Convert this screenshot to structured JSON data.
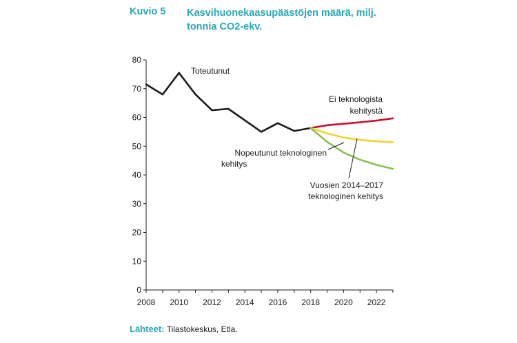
{
  "figure": {
    "label": "Kuvio 5",
    "title": "Kasvihuonekaasupäästöjen määrä, milj. tonnia CO2-ekv."
  },
  "source": {
    "label": "Lähteet:",
    "text": "Tilastokeskus, Etla."
  },
  "chart_data": {
    "type": "line",
    "xlabel": "",
    "ylabel": "",
    "xlim": [
      2008,
      2023
    ],
    "ylim": [
      0,
      80
    ],
    "x_ticks": [
      2008,
      2010,
      2012,
      2014,
      2016,
      2018,
      2020,
      2022
    ],
    "y_ticks": [
      0,
      10,
      20,
      30,
      40,
      50,
      60,
      70,
      80
    ],
    "grid": false,
    "legend": "none",
    "series": [
      {
        "name": "Toteutunut",
        "color": "#1a1a1a",
        "x": [
          2008,
          2009,
          2010,
          2011,
          2012,
          2013,
          2014,
          2015,
          2016,
          2017,
          2018
        ],
        "y": [
          71.5,
          68,
          75.5,
          68,
          62.5,
          63,
          59,
          55,
          58,
          55.3,
          56.3
        ]
      },
      {
        "name": "Ei teknologista kehitystä",
        "color": "#c8102e",
        "x": [
          2018,
          2019,
          2020,
          2021,
          2022,
          2023
        ],
        "y": [
          56.3,
          57.3,
          57.8,
          58.3,
          58.9,
          59.7
        ]
      },
      {
        "name": "Vuosien 2014–2017 teknologinen kehitys",
        "color": "#f2d232",
        "x": [
          2018,
          2019,
          2020,
          2021,
          2022,
          2023
        ],
        "y": [
          56.3,
          54.5,
          53,
          52.2,
          51.7,
          51.4
        ]
      },
      {
        "name": "Nopeutunut teknologinen kehitys",
        "color": "#8cc152",
        "x": [
          2018,
          2019,
          2020,
          2021,
          2022,
          2023
        ],
        "y": [
          56.3,
          51.5,
          47.8,
          45.3,
          43.5,
          42.1
        ]
      }
    ],
    "annotations": [
      {
        "text": "Toteutunut"
      },
      {
        "text": "Ei teknologista",
        "text2": "kehitystä"
      },
      {
        "text": "Nopeutunut teknologinen",
        "text2": "kehitys"
      },
      {
        "text": "Vuosien 2014–2017",
        "text2": "teknologinen kehitys"
      }
    ]
  }
}
